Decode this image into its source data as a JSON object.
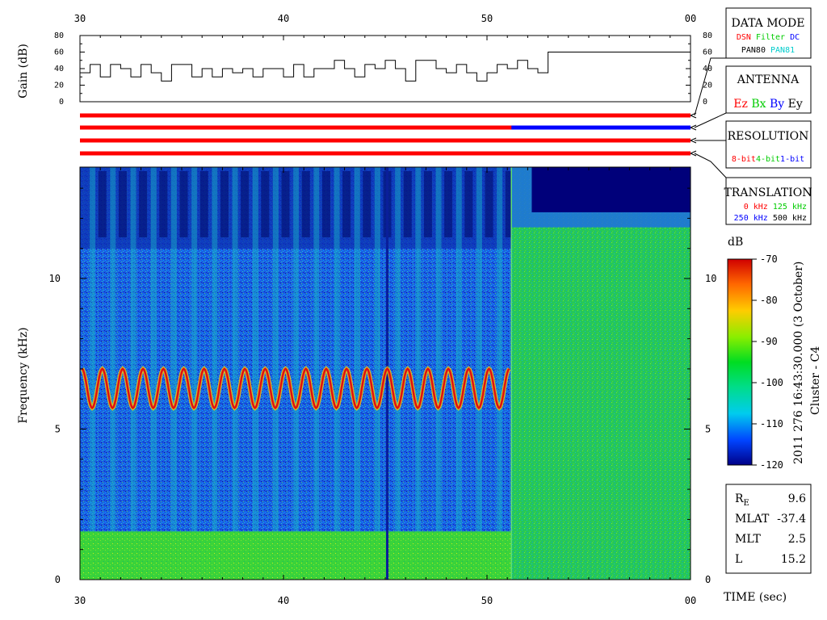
{
  "time_axis": {
    "tick_labels": [
      "30",
      "40",
      "50",
      "00"
    ],
    "xlabel": "TIME (sec)"
  },
  "gain_panel": {
    "ylabel": "Gain (dB)",
    "tick_labels": [
      "80",
      "60",
      "40",
      "20",
      "0"
    ]
  },
  "spectrogram": {
    "ylabel": "Frequency (kHz)",
    "tick_labels": [
      "10",
      "5",
      "0"
    ]
  },
  "colorbar": {
    "unit": "dB",
    "tick_labels": [
      "-70",
      "-80",
      "-90",
      "-100",
      "-110",
      "-120"
    ]
  },
  "timestamp": "2011 276 16:43:30.000 (3 October)",
  "spacecraft": "Cluster - C4",
  "legend_boxes": {
    "data_mode": {
      "title": "DATA MODE",
      "row1": [
        {
          "text": "DSN",
          "color": "#ff0000"
        },
        {
          "text": "Filter",
          "color": "#00cc00"
        },
        {
          "text": "DC",
          "color": "#0000ff"
        }
      ],
      "row2": [
        {
          "text": "PAN80",
          "color": "#000000"
        },
        {
          "text": "PAN81",
          "color": "#00cccc"
        }
      ]
    },
    "antenna": {
      "title": "ANTENNA",
      "row1": [
        {
          "text": "Ez",
          "color": "#ff0000"
        },
        {
          "text": "Bx",
          "color": "#00cc00"
        },
        {
          "text": "By",
          "color": "#0000ff"
        },
        {
          "text": "Ey",
          "color": "#000000"
        }
      ]
    },
    "resolution": {
      "title": "RESOLUTION",
      "row1": [
        {
          "text": "8-bit",
          "color": "#ff0000"
        },
        {
          "text": "4-bit",
          "color": "#00cc00"
        },
        {
          "text": "1-bit",
          "color": "#0000ff"
        }
      ]
    },
    "translation": {
      "title": "TRANSLATION",
      "row1": [
        {
          "text": "0 kHz",
          "color": "#ff0000"
        },
        {
          "text": "125 kHz",
          "color": "#00cc00"
        }
      ],
      "row2": [
        {
          "text": "250 kHz",
          "color": "#0000ff"
        },
        {
          "text": "500 kHz",
          "color": "#000000"
        }
      ]
    }
  },
  "ephemeris": [
    {
      "label": "R",
      "sub": "E",
      "value": "9.6"
    },
    {
      "label": "MLAT",
      "sub": "",
      "value": "-37.4"
    },
    {
      "label": "MLT",
      "sub": "",
      "value": "2.5"
    },
    {
      "label": "L",
      "sub": "",
      "value": "15.2"
    }
  ],
  "colors": {
    "red_bar": "#ff0000",
    "blue_bar": "#0000ff",
    "spectro_bg": "#00007a",
    "spectro_green": "#22cc22"
  },
  "chart_data": {
    "type": "heatmap",
    "x_range_sec": [
      30,
      60
    ],
    "gain": {
      "ylim": [
        0,
        80
      ],
      "x": [
        30.0,
        30.5,
        31.0,
        31.5,
        32.0,
        32.5,
        33.0,
        33.5,
        34.0,
        34.5,
        35.0,
        35.5,
        36.0,
        36.5,
        37.0,
        37.5,
        38.0,
        38.5,
        39.0,
        39.5,
        40.0,
        40.5,
        41.0,
        41.5,
        42.0,
        42.5,
        43.0,
        43.5,
        44.0,
        44.5,
        45.0,
        45.5,
        46.0,
        46.5,
        47.0,
        47.5,
        48.0,
        48.5,
        49.0,
        49.5,
        50.0,
        50.5,
        51.0,
        51.5,
        52.0,
        52.5,
        53.0,
        56.0,
        60.0
      ],
      "y": [
        35,
        45,
        30,
        45,
        40,
        30,
        45,
        35,
        25,
        45,
        45,
        30,
        40,
        30,
        40,
        35,
        40,
        30,
        40,
        40,
        30,
        45,
        30,
        40,
        40,
        50,
        40,
        30,
        45,
        40,
        50,
        40,
        25,
        50,
        50,
        40,
        35,
        45,
        35,
        25,
        35,
        45,
        40,
        50,
        40,
        35,
        60,
        60,
        60
      ]
    },
    "bars": {
      "rows": 4,
      "color_switch": [
        {
          "row": 1,
          "from_sec": 51.2,
          "to_sec": 60,
          "color": "#0000ff"
        }
      ]
    },
    "spectrogram": {
      "ylim_khz": [
        0,
        13.7
      ],
      "zlim_db": [
        -120,
        -70
      ],
      "mode_change_sec": 51.2,
      "emission_band_khz": [
        5.7,
        7.0
      ],
      "emission_period_sec": 1.0,
      "low_band_khz": [
        0,
        1.6
      ]
    }
  }
}
